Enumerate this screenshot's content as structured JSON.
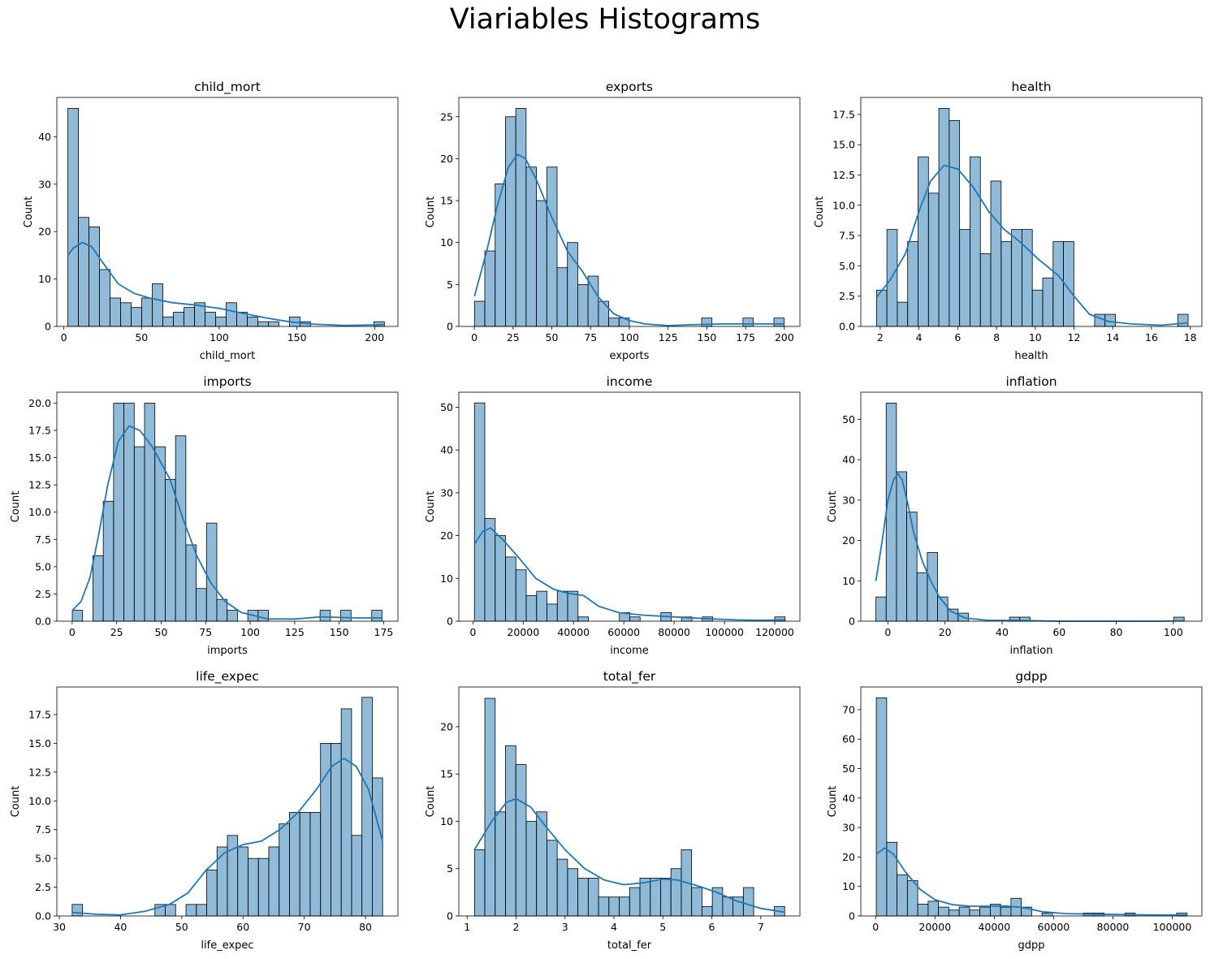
{
  "figure_title": "Viariables Histograms",
  "chart_data": [
    {
      "type": "bar",
      "title": "child_mort",
      "xlabel": "child_mort",
      "ylabel": "Count",
      "xlim": [
        -4.5,
        215
      ],
      "ylim": [
        0,
        48.3
      ],
      "xticks": [
        0,
        50,
        100,
        150,
        200
      ],
      "yticks": [
        0,
        10,
        20,
        30,
        40
      ],
      "bin_start": 2.6,
      "bin_width": 6.79,
      "counts": [
        46,
        23,
        21,
        12,
        6,
        5,
        4,
        6,
        9,
        2,
        3,
        4,
        5,
        3,
        2,
        5,
        3,
        2,
        1,
        1,
        0,
        2,
        1,
        0,
        0,
        0,
        0,
        0,
        0,
        1
      ],
      "kde": [
        [
          2.6,
          15
        ],
        [
          6,
          16.5
        ],
        [
          12,
          17.7
        ],
        [
          18,
          16.8
        ],
        [
          25,
          13.5
        ],
        [
          35,
          9
        ],
        [
          45,
          7
        ],
        [
          55,
          6
        ],
        [
          70,
          5
        ],
        [
          85,
          4.5
        ],
        [
          100,
          3.8
        ],
        [
          115,
          2.8
        ],
        [
          130,
          1.8
        ],
        [
          145,
          1
        ],
        [
          160,
          0.5
        ],
        [
          180,
          0.2
        ],
        [
          200,
          0.3
        ],
        [
          206,
          0.4
        ]
      ]
    },
    {
      "type": "bar",
      "title": "exports",
      "xlabel": "exports",
      "ylabel": "Count",
      "xlim": [
        -10,
        210
      ],
      "ylim": [
        0,
        27.3
      ],
      "xticks": [
        0,
        25,
        50,
        75,
        100,
        125,
        150,
        175,
        200
      ],
      "yticks": [
        0,
        5,
        10,
        15,
        20,
        25
      ],
      "bin_start": 0.1,
      "bin_width": 6.66,
      "counts": [
        3,
        9,
        17,
        25,
        26,
        19,
        15,
        19,
        7,
        10,
        5,
        6,
        3,
        1,
        1,
        0,
        0,
        0,
        0,
        0,
        0,
        0,
        1,
        0,
        0,
        0,
        1,
        0,
        0,
        1
      ],
      "kde": [
        [
          0.1,
          3.6
        ],
        [
          8,
          9
        ],
        [
          15,
          14.5
        ],
        [
          22,
          19
        ],
        [
          28,
          20.5
        ],
        [
          33,
          20
        ],
        [
          40,
          17.5
        ],
        [
          50,
          13
        ],
        [
          60,
          9
        ],
        [
          70,
          6.5
        ],
        [
          80,
          3.5
        ],
        [
          90,
          1.5
        ],
        [
          100,
          0.7
        ],
        [
          110,
          0.3
        ],
        [
          125,
          0.1
        ],
        [
          140,
          0.2
        ],
        [
          160,
          0.3
        ],
        [
          180,
          0.3
        ],
        [
          200,
          0.3
        ]
      ]
    },
    {
      "type": "bar",
      "title": "health",
      "xlabel": "health",
      "ylabel": "Count",
      "xlim": [
        1.0,
        18.6
      ],
      "ylim": [
        0,
        18.9
      ],
      "xticks": [
        2,
        4,
        6,
        8,
        10,
        12,
        14,
        16,
        18
      ],
      "yticks": [
        0.0,
        2.5,
        5.0,
        7.5,
        10.0,
        12.5,
        15.0,
        17.5
      ],
      "bin_start": 1.81,
      "bin_width": 0.536,
      "counts": [
        3,
        8,
        2,
        7,
        14,
        11,
        18,
        17,
        8,
        14,
        6,
        12,
        7,
        8,
        8,
        3,
        4,
        7,
        7,
        0,
        0,
        1,
        1,
        0,
        0,
        0,
        0,
        0,
        0,
        1
      ],
      "kde": [
        [
          1.81,
          2.4
        ],
        [
          2.5,
          3.8
        ],
        [
          3.3,
          6
        ],
        [
          4.0,
          9.5
        ],
        [
          4.6,
          12
        ],
        [
          5.3,
          13.3
        ],
        [
          6.0,
          13
        ],
        [
          6.8,
          11.5
        ],
        [
          7.6,
          9.5
        ],
        [
          8.4,
          8
        ],
        [
          9.2,
          7
        ],
        [
          10.2,
          5.5
        ],
        [
          11.2,
          4.2
        ],
        [
          12.0,
          2.5
        ],
        [
          12.8,
          1
        ],
        [
          13.8,
          0.4
        ],
        [
          15.0,
          0.2
        ],
        [
          16.5,
          0.1
        ],
        [
          17.9,
          0.3
        ]
      ]
    },
    {
      "type": "bar",
      "title": "imports",
      "xlabel": "imports",
      "ylabel": "Count",
      "xlim": [
        -8.6,
        183
      ],
      "ylim": [
        0,
        21
      ],
      "xticks": [
        0,
        25,
        50,
        75,
        100,
        125,
        150,
        175
      ],
      "yticks": [
        0.0,
        2.5,
        5.0,
        7.5,
        10.0,
        12.5,
        15.0,
        17.5,
        20.0
      ],
      "bin_start": 0.07,
      "bin_width": 5.8,
      "counts": [
        1,
        0,
        6,
        11,
        20,
        20,
        16,
        20,
        16,
        13,
        17,
        7,
        3,
        9,
        2,
        1,
        0,
        1,
        1,
        0,
        0,
        0,
        0,
        0,
        1,
        0,
        1,
        0,
        0,
        1
      ],
      "kde": [
        [
          0.07,
          1.0
        ],
        [
          5,
          1.8
        ],
        [
          10,
          4
        ],
        [
          15,
          8
        ],
        [
          20,
          12.5
        ],
        [
          26,
          16.5
        ],
        [
          32,
          17.9
        ],
        [
          38,
          17.5
        ],
        [
          45,
          16
        ],
        [
          55,
          13
        ],
        [
          62,
          9.5
        ],
        [
          70,
          6
        ],
        [
          78,
          3.5
        ],
        [
          86,
          1.8
        ],
        [
          95,
          0.8
        ],
        [
          110,
          0.2
        ],
        [
          125,
          0.2
        ],
        [
          140,
          0.4
        ],
        [
          160,
          0.3
        ],
        [
          174,
          0.3
        ]
      ]
    },
    {
      "type": "bar",
      "title": "income",
      "xlabel": "income",
      "ylabel": "Count",
      "xlim": [
        -5600,
        130000
      ],
      "ylim": [
        0,
        53.5
      ],
      "xticks": [
        0,
        20000,
        40000,
        60000,
        80000,
        100000,
        120000
      ],
      "yticks": [
        0,
        10,
        20,
        30,
        40,
        50
      ],
      "bin_start": 609,
      "bin_width": 4117,
      "counts": [
        51,
        24,
        20,
        15,
        12,
        6,
        7,
        4,
        7,
        7,
        1,
        0,
        0,
        0,
        2,
        1,
        0,
        0,
        2,
        0,
        1,
        0,
        1,
        0,
        0,
        0,
        0,
        0,
        0,
        1
      ],
      "kde": [
        [
          609,
          18
        ],
        [
          4000,
          21
        ],
        [
          7000,
          21.8
        ],
        [
          12000,
          19
        ],
        [
          18000,
          15
        ],
        [
          25000,
          10
        ],
        [
          32000,
          7.5
        ],
        [
          38000,
          6.5
        ],
        [
          44000,
          6
        ],
        [
          50000,
          3.5
        ],
        [
          58000,
          2
        ],
        [
          68000,
          1.4
        ],
        [
          80000,
          1
        ],
        [
          92000,
          0.6
        ],
        [
          105000,
          0.3
        ],
        [
          115000,
          0.2
        ],
        [
          124000,
          0.3
        ]
      ]
    },
    {
      "type": "bar",
      "title": "inflation",
      "xlabel": "inflation",
      "ylabel": "Count",
      "xlim": [
        -9.5,
        110
      ],
      "ylim": [
        0,
        56.7
      ],
      "xticks": [
        0,
        20,
        40,
        60,
        80,
        100
      ],
      "yticks": [
        0,
        10,
        20,
        30,
        40,
        50
      ],
      "bin_start": -4.21,
      "bin_width": 3.6,
      "counts": [
        6,
        54,
        37,
        27,
        12,
        17,
        6,
        3,
        2,
        0,
        0,
        0,
        0,
        1,
        1,
        0,
        0,
        0,
        0,
        0,
        0,
        0,
        0,
        0,
        0,
        0,
        0,
        0,
        0,
        1
      ],
      "kde": [
        [
          -4.21,
          10
        ],
        [
          -2,
          20
        ],
        [
          0,
          30
        ],
        [
          2,
          35
        ],
        [
          3.5,
          36.5
        ],
        [
          5,
          35
        ],
        [
          7,
          29
        ],
        [
          9,
          22
        ],
        [
          12,
          15
        ],
        [
          15,
          10
        ],
        [
          18,
          6
        ],
        [
          22,
          2.5
        ],
        [
          27,
          0.8
        ],
        [
          35,
          0.2
        ],
        [
          45,
          0.2
        ],
        [
          60,
          0
        ],
        [
          80,
          0
        ],
        [
          95,
          0
        ],
        [
          104,
          0.1
        ]
      ]
    },
    {
      "type": "bar",
      "title": "life_expec",
      "xlabel": "life_expec",
      "ylabel": "Count",
      "xlim": [
        29.6,
        85.3
      ],
      "ylim": [
        0,
        19.9
      ],
      "xticks": [
        30,
        40,
        50,
        60,
        70,
        80
      ],
      "yticks": [
        0.0,
        2.5,
        5.0,
        7.5,
        10.0,
        12.5,
        15.0,
        17.5
      ],
      "bin_start": 32.1,
      "bin_width": 1.69,
      "counts": [
        1,
        0,
        0,
        0,
        0,
        0,
        0,
        0,
        1,
        1,
        0,
        1,
        1,
        4,
        6,
        7,
        6,
        5,
        5,
        6,
        8,
        9,
        9,
        9,
        15,
        15,
        18,
        7,
        19,
        12
      ],
      "kde": [
        [
          32.1,
          0.3
        ],
        [
          36,
          0.15
        ],
        [
          40,
          0.1
        ],
        [
          44,
          0.4
        ],
        [
          48,
          1
        ],
        [
          51,
          2
        ],
        [
          54,
          4
        ],
        [
          57,
          5.5
        ],
        [
          60,
          6.2
        ],
        [
          63,
          6.5
        ],
        [
          66,
          7.5
        ],
        [
          69,
          9
        ],
        [
          72,
          11
        ],
        [
          74.5,
          13
        ],
        [
          76.5,
          13.7
        ],
        [
          78.5,
          13
        ],
        [
          80.5,
          11
        ],
        [
          82.8,
          6.5
        ]
      ]
    },
    {
      "type": "bar",
      "title": "total_fer",
      "xlabel": "total_fer",
      "ylabel": "Count",
      "xlim": [
        0.83,
        7.8
      ],
      "ylim": [
        0,
        24.2
      ],
      "xticks": [
        1,
        2,
        3,
        4,
        5,
        6,
        7
      ],
      "yticks": [
        0,
        5,
        10,
        15,
        20
      ],
      "bin_start": 1.15,
      "bin_width": 0.2113,
      "counts": [
        7,
        23,
        11,
        18,
        16,
        10,
        11,
        8,
        6,
        5,
        4,
        4,
        2,
        2,
        2,
        3,
        4,
        4,
        4,
        5,
        7,
        3,
        1,
        3,
        2,
        2,
        3,
        0,
        0,
        1
      ],
      "kde": [
        [
          1.15,
          7
        ],
        [
          1.5,
          10
        ],
        [
          1.8,
          12
        ],
        [
          2.0,
          12.4
        ],
        [
          2.3,
          11.5
        ],
        [
          2.6,
          9.5
        ],
        [
          3.0,
          7
        ],
        [
          3.4,
          5
        ],
        [
          3.8,
          3.8
        ],
        [
          4.2,
          3.3
        ],
        [
          4.6,
          3.5
        ],
        [
          5.0,
          3.9
        ],
        [
          5.3,
          3.8
        ],
        [
          5.7,
          3.2
        ],
        [
          6.1,
          2.5
        ],
        [
          6.5,
          1.6
        ],
        [
          7.0,
          0.8
        ],
        [
          7.49,
          0.4
        ]
      ]
    },
    {
      "type": "bar",
      "title": "gdpp",
      "xlabel": "gdpp",
      "ylabel": "Count",
      "xlim": [
        -5000,
        110000
      ],
      "ylim": [
        0,
        77.7
      ],
      "xticks": [
        0,
        20000,
        40000,
        60000,
        80000,
        100000
      ],
      "yticks": [
        0,
        10,
        20,
        30,
        40,
        50,
        60,
        70
      ],
      "bin_start": 231,
      "bin_width": 3492,
      "counts": [
        74,
        25,
        14,
        12,
        4,
        5,
        3,
        2,
        3,
        2,
        3,
        4,
        3,
        6,
        3,
        0,
        1,
        0,
        0,
        0,
        1,
        1,
        0,
        0,
        1,
        0,
        0,
        0,
        0,
        1
      ],
      "kde": [
        [
          231,
          21
        ],
        [
          3000,
          23
        ],
        [
          6000,
          21
        ],
        [
          10000,
          15
        ],
        [
          15000,
          9
        ],
        [
          20000,
          5.5
        ],
        [
          26000,
          3.8
        ],
        [
          32000,
          3.3
        ],
        [
          38000,
          3.3
        ],
        [
          44000,
          3.4
        ],
        [
          50000,
          2.8
        ],
        [
          56000,
          1.5
        ],
        [
          64000,
          0.8
        ],
        [
          75000,
          0.6
        ],
        [
          88000,
          0.4
        ],
        [
          100000,
          0.3
        ],
        [
          105000,
          0.3
        ]
      ]
    }
  ]
}
